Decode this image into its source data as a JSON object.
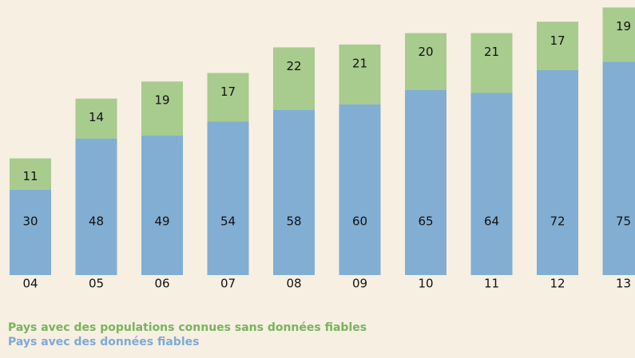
{
  "chart_data": {
    "type": "stacked_bar",
    "categories": [
      "04",
      "05",
      "06",
      "07",
      "08",
      "09",
      "10",
      "11",
      "12",
      "13"
    ],
    "series": [
      {
        "name": "Pays avec des données fiables",
        "color": "#82aed3",
        "values": [
          30,
          48,
          49,
          54,
          58,
          60,
          65,
          64,
          72,
          75
        ]
      },
      {
        "name": "Pays avec des populations connues sans données fiables",
        "color": "#a8cb8e",
        "values": [
          11,
          14,
          19,
          17,
          22,
          21,
          20,
          21,
          17,
          19
        ]
      }
    ]
  }
}
